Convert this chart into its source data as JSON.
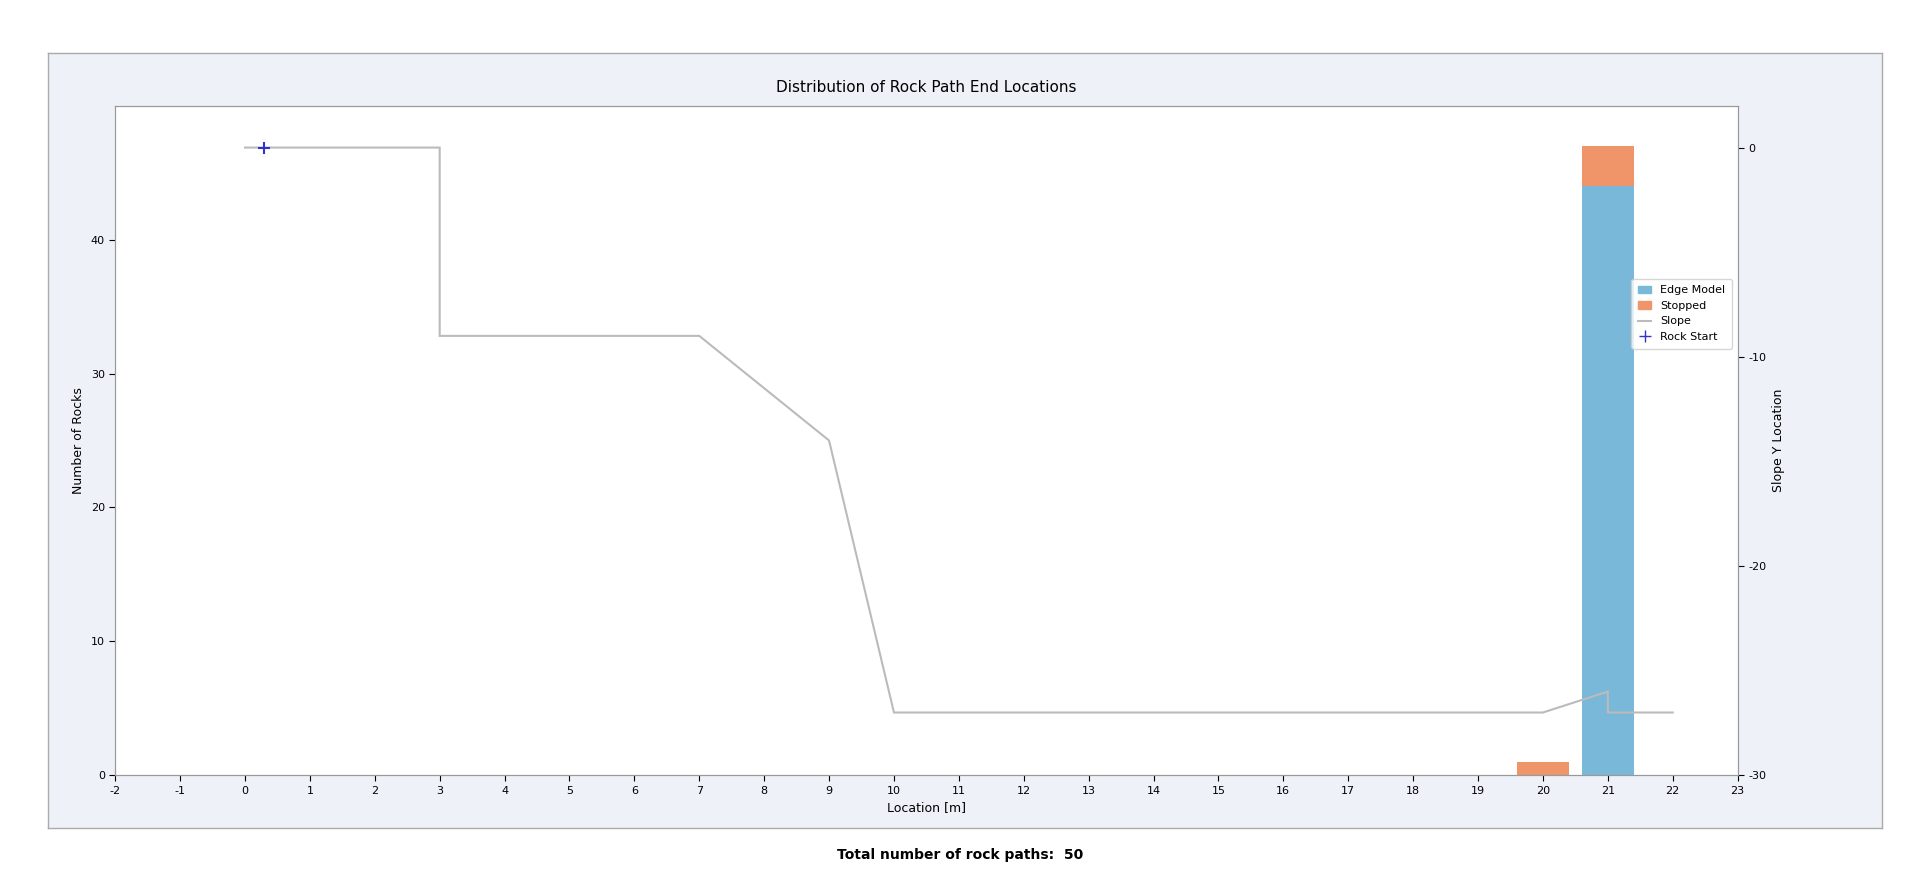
{
  "title": "Distribution of Rock Path End Locations",
  "xlabel": "Location [m]",
  "ylabel_left": "Number of Rocks",
  "ylabel_right": "Slope Y Location",
  "footer": "Total number of rock paths:  50",
  "xlim": [
    -2,
    23
  ],
  "ylim_left": [
    0,
    50
  ],
  "ylim_right": [
    -30,
    2
  ],
  "outer_bg_color": "#ffffff",
  "panel_bg_color": "#eef2f8",
  "plot_bg_color": "#ffffff",
  "slope_x": [
    0,
    0,
    3,
    3,
    7,
    7,
    9,
    10,
    14,
    20,
    21,
    21,
    22
  ],
  "slope_y": [
    0,
    0,
    0,
    -9,
    -9,
    -9,
    -14,
    -27,
    -27,
    -27,
    -26,
    -27,
    -27
  ],
  "rock_start_x": 0.3,
  "rock_start_y_slope": 0,
  "edge_model_bar_x": 21,
  "edge_model_bar_height": 44,
  "stopped_bar_x": 20,
  "stopped_bar_height": 1,
  "stopped_bar2_x": 21,
  "stopped_bar2_height": 3,
  "bar_width": 0.8,
  "edge_model_color": "#7ab8d9",
  "stopped_color": "#f0956a",
  "slope_color": "#bbbbbb",
  "rock_start_color": "#3333cc",
  "title_fontsize": 11,
  "axis_label_fontsize": 9,
  "tick_fontsize": 8,
  "legend_fontsize": 8,
  "xticks": [
    -2,
    -1,
    0,
    1,
    2,
    3,
    4,
    5,
    6,
    7,
    8,
    9,
    10,
    11,
    12,
    13,
    14,
    15,
    16,
    17,
    18,
    19,
    20,
    21,
    22,
    23
  ],
  "yticks_left": [
    0,
    10,
    20,
    30,
    40
  ],
  "yticks_right": [
    0,
    -10,
    -20,
    -30
  ]
}
